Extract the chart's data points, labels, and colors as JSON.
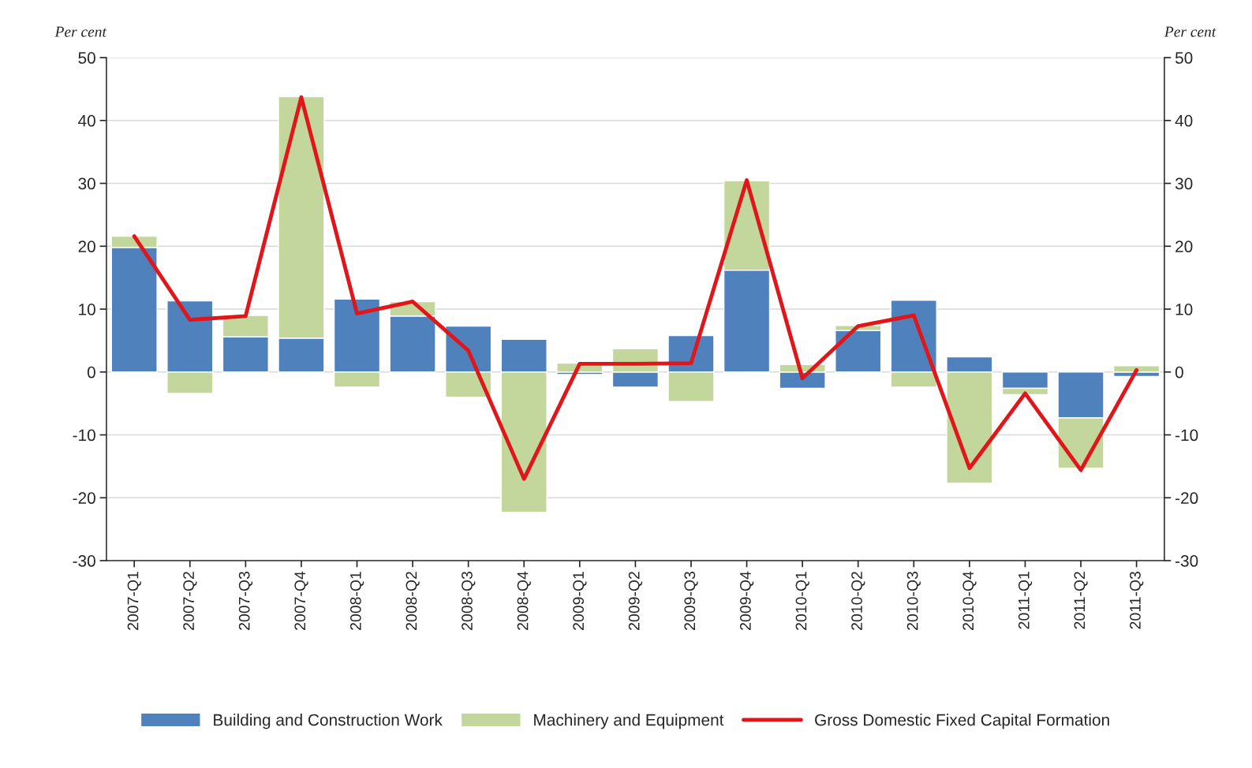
{
  "chart_data": {
    "type": "bar",
    "stacked": true,
    "ylabel": "Per cent",
    "y2label": "Per cent",
    "categories": [
      "2007-Q1",
      "2007-Q2",
      "2007-Q3",
      "2007-Q4",
      "2008-Q1",
      "2008-Q2",
      "2008-Q3",
      "2008-Q4",
      "2009-Q1",
      "2009-Q2",
      "2009-Q3",
      "2009-Q4",
      "2010-Q1",
      "2010-Q2",
      "2010-Q3",
      "2010-Q4",
      "2011-Q1",
      "2011-Q2",
      "2011-Q3"
    ],
    "series": [
      {
        "name": "Building and Construction Work",
        "color": "#4f81bd",
        "values": [
          19.8,
          11.3,
          5.6,
          5.4,
          11.6,
          8.9,
          7.3,
          5.2,
          -0.4,
          -2.4,
          5.8,
          16.2,
          -2.6,
          6.6,
          11.4,
          2.4,
          -2.6,
          -7.3,
          -0.7
        ]
      },
      {
        "name": "Machinery and Equipment",
        "color": "#c3d69b",
        "values": [
          1.8,
          -3.4,
          3.4,
          38.4,
          -2.4,
          2.3,
          -4.0,
          -22.3,
          1.4,
          3.7,
          -4.7,
          14.2,
          1.2,
          0.8,
          -2.4,
          -17.7,
          -1.0,
          -8.0,
          1.0
        ]
      },
      {
        "name": "Gross Domestic Fixed Capital Formation",
        "type": "line",
        "color": "#e0161b",
        "values": [
          21.6,
          8.3,
          8.9,
          43.7,
          9.3,
          11.2,
          3.4,
          -17.0,
          1.3,
          1.3,
          1.4,
          30.5,
          -1.0,
          7.3,
          9.0,
          -15.3,
          -3.4,
          -15.6,
          0.3
        ]
      }
    ],
    "ylim": [
      -30,
      50
    ],
    "yticks": [
      -30,
      -20,
      -10,
      0,
      10,
      20,
      30,
      40,
      50
    ],
    "y2lim": [
      -30,
      50
    ],
    "y2ticks": [
      -30,
      -20,
      -10,
      0,
      10,
      20,
      30,
      40,
      50
    ],
    "grid": "y",
    "legend": "bottom",
    "marker": "none",
    "line_style": "solid"
  }
}
